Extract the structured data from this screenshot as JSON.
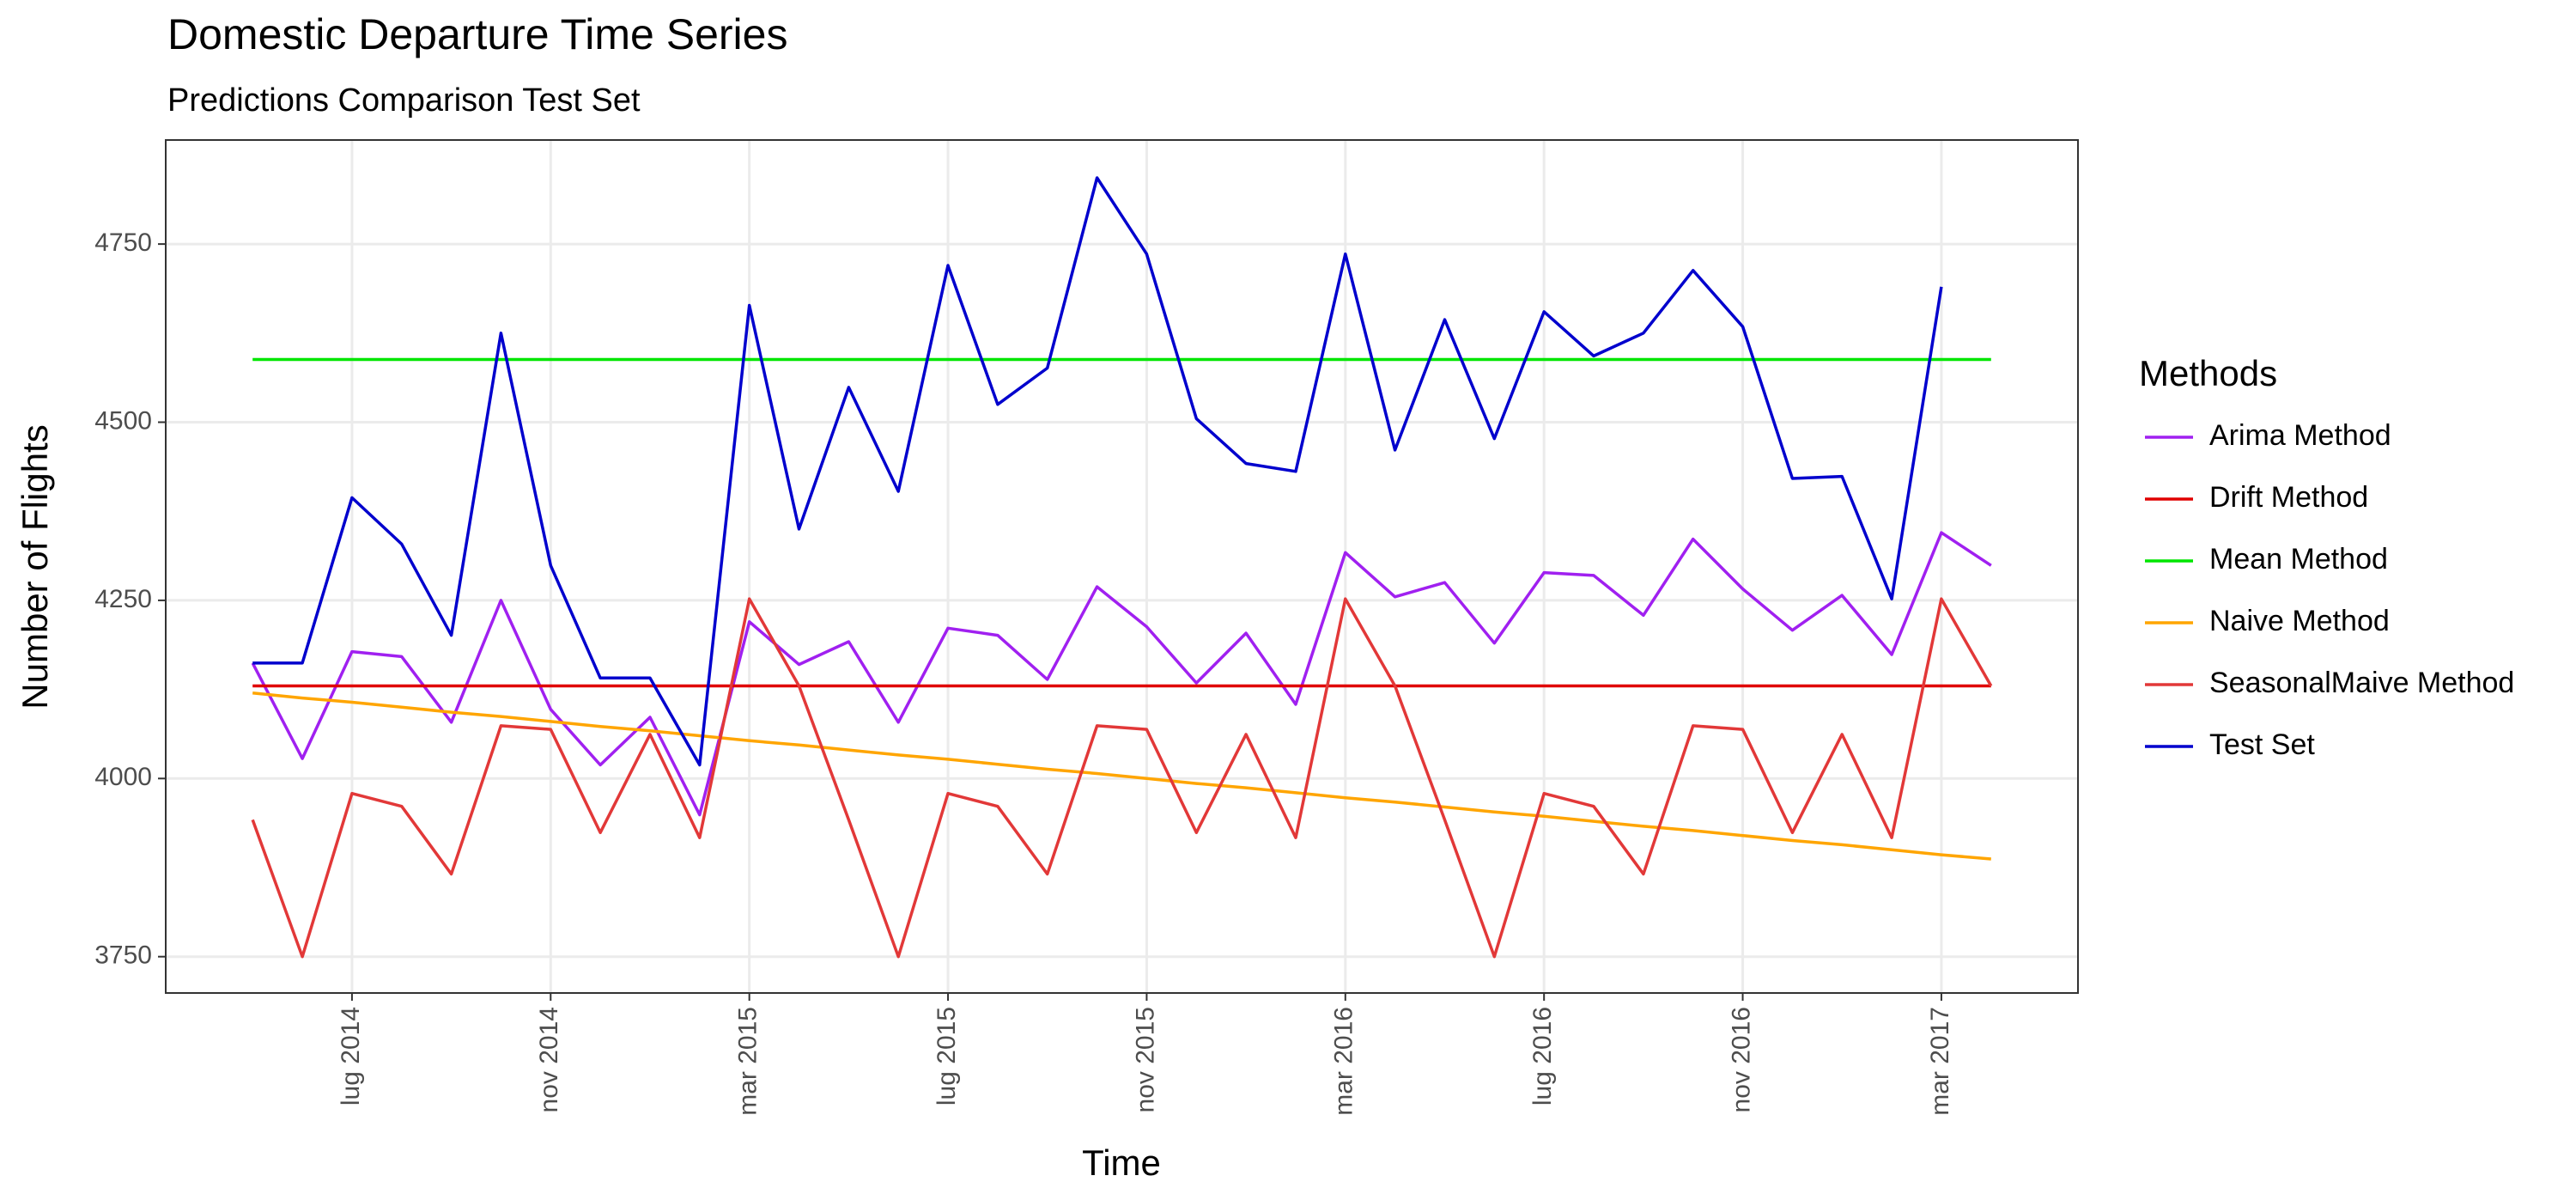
{
  "chart_data": {
    "type": "line",
    "title": "Domestic Departure Time Series",
    "subtitle": "Predictions Comparison Test Set",
    "x_label": "Time",
    "y_label": "Number of Flights",
    "legend_title": "Methods",
    "legend_position": "right",
    "grid": true,
    "x": [
      "2014-05",
      "2014-06",
      "2014-07",
      "2014-08",
      "2014-09",
      "2014-10",
      "2014-11",
      "2014-12",
      "2015-01",
      "2015-02",
      "2015-03",
      "2015-04",
      "2015-05",
      "2015-06",
      "2015-07",
      "2015-08",
      "2015-09",
      "2015-10",
      "2015-11",
      "2015-12",
      "2016-01",
      "2016-02",
      "2016-03",
      "2016-04",
      "2016-05",
      "2016-06",
      "2016-07",
      "2016-08",
      "2016-09",
      "2016-10",
      "2016-11",
      "2016-12",
      "2017-01",
      "2017-02",
      "2017-03",
      "2017-04"
    ],
    "xticks": [
      {
        "value": "2014-07",
        "label": "lug 2014"
      },
      {
        "value": "2014-11",
        "label": "nov 2014"
      },
      {
        "value": "2015-03",
        "label": "mar 2015"
      },
      {
        "value": "2015-07",
        "label": "lug 2015"
      },
      {
        "value": "2015-11",
        "label": "nov 2015"
      },
      {
        "value": "2016-03",
        "label": "mar 2016"
      },
      {
        "value": "2016-07",
        "label": "lug 2016"
      },
      {
        "value": "2016-11",
        "label": "nov 2016"
      },
      {
        "value": "2017-03",
        "label": "mar 2017"
      }
    ],
    "ylim": [
      3699,
      4896
    ],
    "yticks": [
      3750,
      4000,
      4250,
      4500,
      4750
    ],
    "series": [
      {
        "name": "Arima Method",
        "color": "#a020f0",
        "values": [
          4162,
          4028,
          4178,
          4171,
          4079,
          4250,
          4097,
          4019,
          4086,
          3949,
          4220,
          4160,
          4192,
          4079,
          4211,
          4201,
          4139,
          4269,
          4213,
          4134,
          4204,
          4104,
          4317,
          4255,
          4275,
          4190,
          4289,
          4285,
          4229,
          4336,
          4266,
          4208,
          4257,
          4174,
          4345,
          4299
        ]
      },
      {
        "name": "Drift Method",
        "color": "#e00000",
        "values": [
          4130,
          4130,
          4130,
          4130,
          4130,
          4130,
          4130,
          4130,
          4130,
          4130,
          4130,
          4130,
          4130,
          4130,
          4130,
          4130,
          4130,
          4130,
          4130,
          4130,
          4130,
          4130,
          4130,
          4130,
          4130,
          4130,
          4130,
          4130,
          4130,
          4130,
          4130,
          4130,
          4130,
          4130,
          4130,
          4130
        ]
      },
      {
        "name": "Mean Method",
        "color": "#00e600",
        "values": [
          4588,
          4588,
          4588,
          4588,
          4588,
          4588,
          4588,
          4588,
          4588,
          4588,
          4588,
          4588,
          4588,
          4588,
          4588,
          4588,
          4588,
          4588,
          4588,
          4588,
          4588,
          4588,
          4588,
          4588,
          4588,
          4588,
          4588,
          4588,
          4588,
          4588,
          4588,
          4588,
          4588,
          4588,
          4588,
          4588
        ]
      },
      {
        "name": "Naive Method",
        "color": "#ffa500",
        "values": [
          4120,
          4113,
          4107,
          4100,
          4093,
          4087,
          4080,
          4073,
          4067,
          4060,
          4053,
          4047,
          4040,
          4033,
          4027,
          4020,
          4013,
          4007,
          4000,
          3993,
          3987,
          3980,
          3973,
          3967,
          3960,
          3953,
          3947,
          3940,
          3933,
          3927,
          3920,
          3913,
          3907,
          3900,
          3893,
          3887
        ]
      },
      {
        "name": "SeasonalMaive Method",
        "color": "#e23838",
        "values": [
          3942,
          3750,
          3979,
          3961,
          3866,
          4074,
          4069,
          3924,
          4062,
          3917,
          4252,
          4130,
          3942,
          3750,
          3979,
          3961,
          3866,
          4074,
          4069,
          3924,
          4062,
          3917,
          4252,
          4130,
          3942,
          3750,
          3979,
          3961,
          3866,
          4074,
          4069,
          3924,
          4062,
          3917,
          4252,
          4130
        ]
      },
      {
        "name": "Test Set",
        "color": "#0000cd",
        "values": [
          4162,
          4162,
          4394,
          4329,
          4201,
          4625,
          4299,
          4141,
          4141,
          4019,
          4664,
          4350,
          4549,
          4403,
          4720,
          4525,
          4576,
          4843,
          4736,
          4505,
          4442,
          4431,
          4736,
          4461,
          4644,
          4477,
          4655,
          4593,
          4625,
          4713,
          4634,
          4421,
          4424,
          4252,
          4690,
          null
        ]
      }
    ]
  }
}
